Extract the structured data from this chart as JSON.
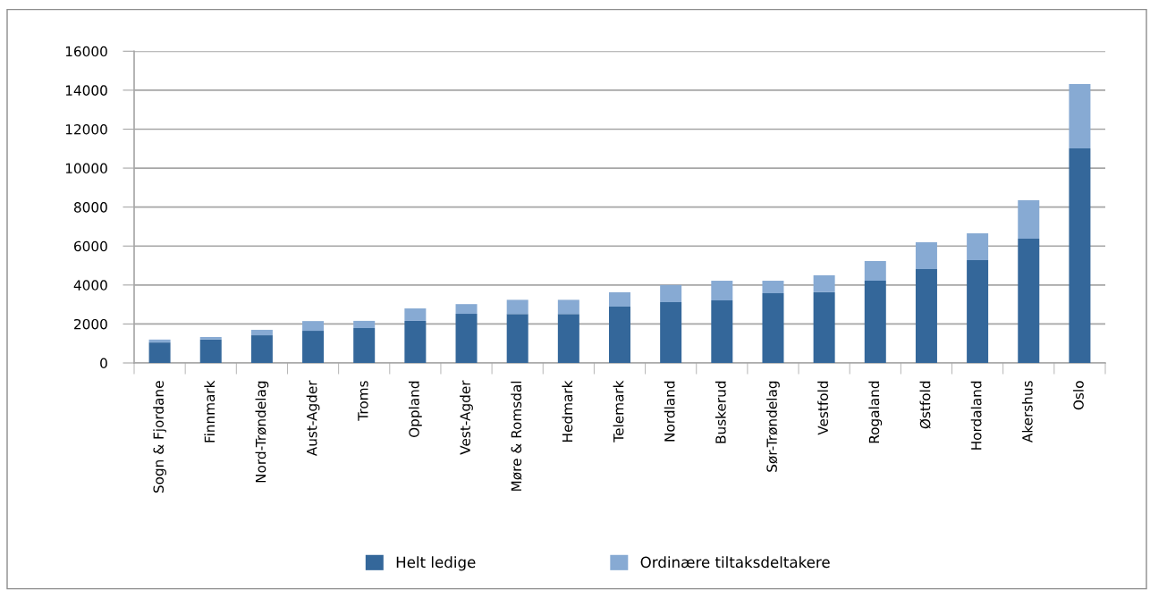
{
  "chart_data": {
    "type": "bar",
    "stacked": true,
    "categories": [
      "Sogn & Fjordane",
      "Finnmark",
      "Nord-Trøndelag",
      "Aust-Agder",
      "Troms",
      "Oppland",
      "Vest-Agder",
      "Møre & Romsdal",
      "Hedmark",
      "Telemark",
      "Nordland",
      "Buskerud",
      "Sør-Trøndelag",
      "Vestfold",
      "Rogaland",
      "Østfold",
      "Hordaland",
      "Akershus",
      "Oslo"
    ],
    "series": [
      {
        "name": "Helt ledige",
        "color": "#34679a",
        "values": [
          1050,
          1200,
          1420,
          1650,
          1790,
          2160,
          2520,
          2510,
          2510,
          2890,
          3120,
          3210,
          3580,
          3630,
          4220,
          4820,
          5280,
          6380,
          11010
        ]
      },
      {
        "name": "Ordinære tiltaksdeltakere",
        "color": "#87aad3",
        "values": [
          150,
          130,
          280,
          500,
          370,
          640,
          500,
          730,
          730,
          740,
          880,
          1010,
          640,
          870,
          1010,
          1380,
          1370,
          1970,
          3310
        ]
      }
    ],
    "ylim": [
      0,
      16000
    ],
    "yticks": [
      0,
      2000,
      4000,
      6000,
      8000,
      10000,
      12000,
      14000,
      16000
    ],
    "grid": "y",
    "legend": "bottom"
  }
}
